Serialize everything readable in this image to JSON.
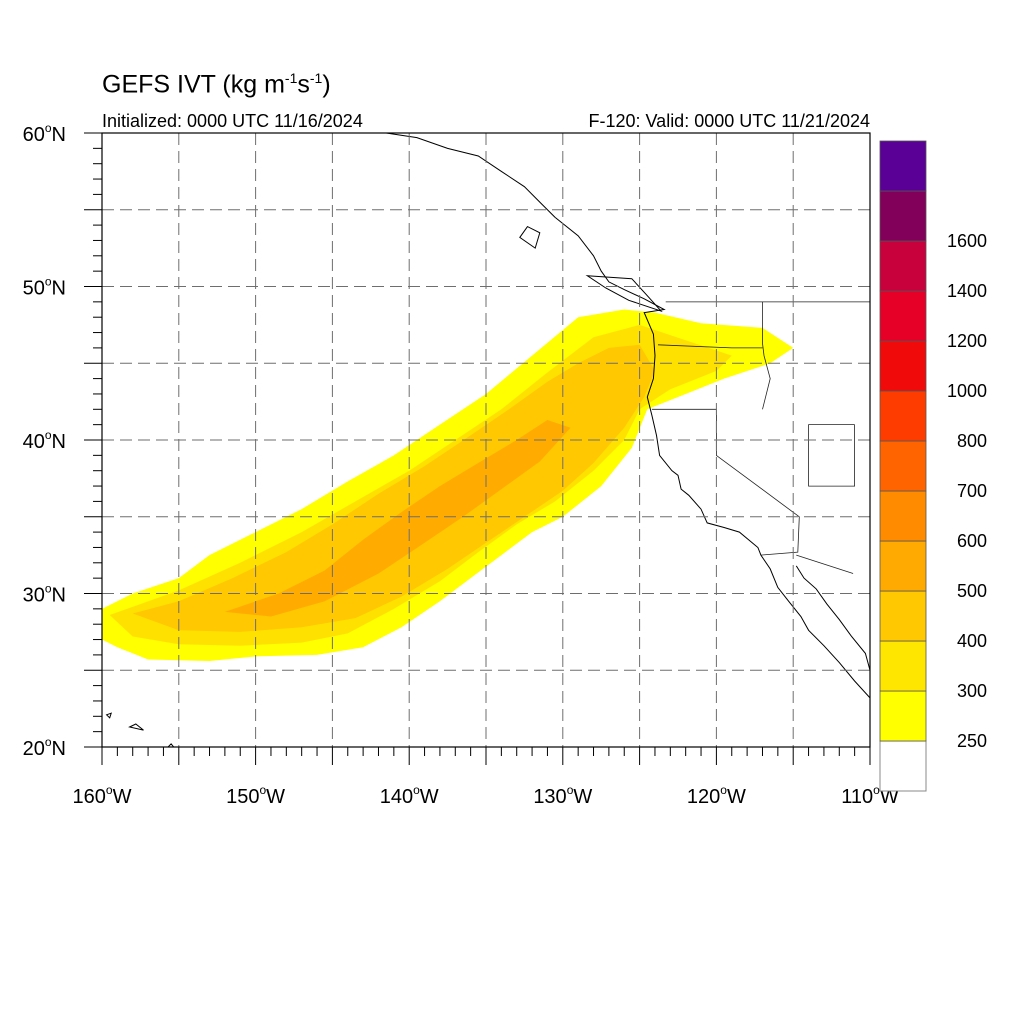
{
  "header": {
    "title_main": "GEFS IVT (kg m",
    "title_sup1": "-1",
    "title_mid": "s",
    "title_sup2": "-1",
    "title_end": ")",
    "init_text": "Initialized: 0000 UTC 11/16/2024",
    "valid_text": "F-120: Valid: 0000 UTC 11/21/2024"
  },
  "map": {
    "lon_range": [
      -160,
      -110
    ],
    "lat_range": [
      20,
      60
    ],
    "grid": "dashed 5-degree",
    "lat_labels": [
      {
        "lat": 60,
        "deg": "60",
        "hem": "N"
      },
      {
        "lat": 50,
        "deg": "50",
        "hem": "N"
      },
      {
        "lat": 40,
        "deg": "40",
        "hem": "N"
      },
      {
        "lat": 30,
        "deg": "30",
        "hem": "N"
      },
      {
        "lat": 20,
        "deg": "20",
        "hem": "N"
      }
    ],
    "lon_labels": [
      {
        "lon": -160,
        "deg": "160",
        "hem": "W"
      },
      {
        "lon": -150,
        "deg": "150",
        "hem": "W"
      },
      {
        "lon": -140,
        "deg": "140",
        "hem": "W"
      },
      {
        "lon": -130,
        "deg": "130",
        "hem": "W"
      },
      {
        "lon": -120,
        "deg": "120",
        "hem": "W"
      },
      {
        "lon": -110,
        "deg": "110",
        "hem": "W"
      }
    ]
  },
  "colorbar": {
    "levels": [
      {
        "value": 250,
        "label": "250",
        "color": "#ffff00"
      },
      {
        "value": 300,
        "label": "300",
        "color": "#ffe600"
      },
      {
        "value": 400,
        "label": "400",
        "color": "#ffc800"
      },
      {
        "value": 500,
        "label": "500",
        "color": "#ffaa00"
      },
      {
        "value": 600,
        "label": "600",
        "color": "#ff8c00"
      },
      {
        "value": 700,
        "label": "700",
        "color": "#ff6400"
      },
      {
        "value": 800,
        "label": "800",
        "color": "#ff3c00"
      },
      {
        "value": 1000,
        "label": "1000",
        "color": "#f00a0a"
      },
      {
        "value": 1200,
        "label": "1200",
        "color": "#e60028"
      },
      {
        "value": 1400,
        "label": "1400",
        "color": "#c8003c"
      },
      {
        "value": 1600,
        "label": "1600",
        "color": "#82005a"
      },
      {
        "value": null,
        "label": "",
        "color": "#5a0096"
      }
    ],
    "below_min_color": "#ffffff"
  },
  "ivt_plume": {
    "units": "kg m-1 s-1",
    "bands": [
      {
        "min_value": 250,
        "color": "#ffff00",
        "lonlat": [
          [
            -160,
            29
          ],
          [
            -158,
            30
          ],
          [
            -155,
            31
          ],
          [
            -153,
            32.5
          ],
          [
            -150,
            34
          ],
          [
            -147,
            35.5
          ],
          [
            -144,
            37.3
          ],
          [
            -141,
            39
          ],
          [
            -138,
            41
          ],
          [
            -135,
            43
          ],
          [
            -132,
            45.5
          ],
          [
            -129,
            48
          ],
          [
            -126,
            48.5
          ],
          [
            -124,
            48.3
          ],
          [
            -121,
            47.6
          ],
          [
            -117,
            47.3
          ],
          [
            -115,
            46
          ],
          [
            -116.5,
            45
          ],
          [
            -119.5,
            44
          ],
          [
            -122,
            43
          ],
          [
            -124.5,
            42
          ],
          [
            -125.5,
            39.5
          ],
          [
            -127.5,
            37
          ],
          [
            -130,
            35
          ],
          [
            -132,
            34
          ],
          [
            -134,
            32.5
          ],
          [
            -136,
            31
          ],
          [
            -138,
            29.5
          ],
          [
            -140.5,
            27.8
          ],
          [
            -143,
            26.5
          ],
          [
            -146,
            26
          ],
          [
            -150,
            25.9
          ],
          [
            -153,
            25.6
          ],
          [
            -157,
            25.7
          ],
          [
            -159,
            26.5
          ],
          [
            -160,
            27
          ]
        ]
      },
      {
        "min_value": 300,
        "color": "#ffe100",
        "lonlat": [
          [
            -159.5,
            28.6
          ],
          [
            -155,
            30.2
          ],
          [
            -151,
            32
          ],
          [
            -147,
            34
          ],
          [
            -143.5,
            36
          ],
          [
            -140,
            38
          ],
          [
            -137,
            40
          ],
          [
            -134,
            42
          ],
          [
            -131,
            44.4
          ],
          [
            -128,
            46.7
          ],
          [
            -125,
            47.5
          ],
          [
            -122,
            46.5
          ],
          [
            -119,
            45.5
          ],
          [
            -120,
            44.5
          ],
          [
            -123,
            43.3
          ],
          [
            -125,
            42
          ],
          [
            -126,
            40
          ],
          [
            -128,
            38
          ],
          [
            -130.5,
            36
          ],
          [
            -133,
            34.5
          ],
          [
            -135.5,
            32.7
          ],
          [
            -138,
            30.8
          ],
          [
            -141,
            29
          ],
          [
            -144,
            27.4
          ],
          [
            -147,
            26.8
          ],
          [
            -151,
            26.6
          ],
          [
            -155,
            26.7
          ],
          [
            -158,
            27.2
          ]
        ]
      },
      {
        "min_value": 400,
        "color": "#ffc800",
        "lonlat": [
          [
            -158,
            28.7
          ],
          [
            -155,
            29.5
          ],
          [
            -151.5,
            31
          ],
          [
            -148,
            32.7
          ],
          [
            -145,
            34.5
          ],
          [
            -142,
            36.5
          ],
          [
            -139,
            38.3
          ],
          [
            -136,
            40.3
          ],
          [
            -133.5,
            42
          ],
          [
            -131,
            43.8
          ],
          [
            -129,
            45
          ],
          [
            -127,
            46
          ],
          [
            -125,
            46.2
          ],
          [
            -124,
            44.5
          ],
          [
            -124.7,
            42.8
          ],
          [
            -126,
            40.8
          ],
          [
            -128,
            38.5
          ],
          [
            -130,
            36.7
          ],
          [
            -132.5,
            35
          ],
          [
            -135,
            33.3
          ],
          [
            -137.5,
            31.6
          ],
          [
            -140.5,
            29.8
          ],
          [
            -143.5,
            28.4
          ],
          [
            -147,
            27.8
          ],
          [
            -151,
            27.5
          ],
          [
            -155,
            27.6
          ]
        ]
      },
      {
        "min_value": 500,
        "color": "#ffab00",
        "lonlat": [
          [
            -152,
            28.8
          ],
          [
            -148.5,
            30
          ],
          [
            -145.5,
            31.5
          ],
          [
            -143,
            33.5
          ],
          [
            -140.5,
            35.3
          ],
          [
            -138,
            37
          ],
          [
            -135.5,
            38.5
          ],
          [
            -133,
            40
          ],
          [
            -131,
            41.3
          ],
          [
            -129.5,
            40.8
          ],
          [
            -131.5,
            38.6
          ],
          [
            -134,
            36.8
          ],
          [
            -136.5,
            35
          ],
          [
            -139,
            33.3
          ],
          [
            -142,
            31.3
          ],
          [
            -145.5,
            29.5
          ],
          [
            -149,
            28.5
          ]
        ]
      }
    ]
  },
  "geography": {
    "coastline": [
      [
        [
          -130.5,
          54.5
        ],
        [
          -131.5,
          55.5
        ],
        [
          -132.5,
          56.5
        ],
        [
          -134,
          57.5
        ],
        [
          -135.5,
          58.5
        ],
        [
          -137.5,
          59
        ],
        [
          -139.5,
          59.7
        ],
        [
          -141.5,
          60
        ]
      ],
      [
        [
          -130.5,
          54.5
        ],
        [
          -129,
          53.3
        ],
        [
          -128,
          52
        ],
        [
          -127.5,
          51
        ],
        [
          -127,
          50.3
        ],
        [
          -126,
          49.8
        ],
        [
          -124.7,
          49.2
        ],
        [
          -123.4,
          48.5
        ],
        [
          -124.7,
          48.3
        ],
        [
          -124.1,
          46.9
        ],
        [
          -124,
          45.5
        ],
        [
          -124.1,
          44
        ],
        [
          -124.5,
          42.8
        ],
        [
          -124.2,
          41.6
        ],
        [
          -123.9,
          40.3
        ],
        [
          -123.7,
          39
        ],
        [
          -122.9,
          38
        ],
        [
          -122.5,
          37.7
        ],
        [
          -122.3,
          36.8
        ],
        [
          -121.8,
          36.4
        ],
        [
          -121,
          35.5
        ],
        [
          -120.6,
          34.6
        ],
        [
          -119.5,
          34.3
        ],
        [
          -118.5,
          34
        ],
        [
          -117.3,
          33
        ],
        [
          -117.1,
          32.5
        ],
        [
          -116.5,
          31.6
        ],
        [
          -116,
          30.4
        ],
        [
          -115.3,
          29.5
        ],
        [
          -114.5,
          28.5
        ],
        [
          -114,
          27.6
        ],
        [
          -113,
          26.6
        ],
        [
          -112,
          25.5
        ],
        [
          -111,
          24.3
        ],
        [
          -110,
          23.2
        ]
      ],
      [
        [
          -114.8,
          31.8
        ],
        [
          -114.3,
          31
        ],
        [
          -113.5,
          30.3
        ],
        [
          -112.8,
          29.3
        ],
        [
          -112,
          28.3
        ],
        [
          -111.2,
          27.2
        ],
        [
          -110.3,
          26.1
        ],
        [
          -110,
          25
        ]
      ]
    ],
    "island_groups": [
      [
        [
          -155.9,
          19.8
        ],
        [
          -155.5,
          19.5
        ],
        [
          -155,
          19.6
        ],
        [
          -155.5,
          20.2
        ]
      ],
      [
        [
          -157.3,
          21.1
        ],
        [
          -157.8,
          21.5
        ],
        [
          -158.2,
          21.3
        ]
      ],
      [
        [
          -159.4,
          22.2
        ],
        [
          -159.7,
          22.1
        ],
        [
          -159.5,
          21.9
        ]
      ],
      [
        [
          -132.3,
          53.9
        ],
        [
          -132.8,
          53.2
        ],
        [
          -131.8,
          52.5
        ],
        [
          -131.5,
          53.5
        ]
      ],
      [
        [
          -125.5,
          50.5
        ],
        [
          -128.4,
          50.7
        ],
        [
          -127.2,
          49.9
        ],
        [
          -125.7,
          49.1
        ],
        [
          -123.6,
          48.4
        ],
        [
          -124.5,
          49.4
        ]
      ]
    ],
    "borders": [
      [
        [
          -123.3,
          49
        ],
        [
          -110,
          49
        ]
      ],
      [
        [
          -124.2,
          42
        ],
        [
          -120,
          42
        ],
        [
          -120,
          39
        ],
        [
          -114.6,
          35
        ],
        [
          -114.7,
          32.7
        ],
        [
          -117.1,
          32.5
        ]
      ],
      [
        [
          -117,
          49
        ],
        [
          -117,
          46.3
        ],
        [
          -116.9,
          45.5
        ],
        [
          -116.5,
          44
        ],
        [
          -117,
          42
        ]
      ],
      [
        [
          -111,
          41
        ],
        [
          -114,
          41
        ],
        [
          -114,
          37
        ],
        [
          -111,
          37
        ],
        [
          -111,
          41
        ]
      ],
      [
        [
          -111.1,
          31.3
        ],
        [
          -114.8,
          32.5
        ]
      ],
      [
        [
          -123.8,
          46.2
        ],
        [
          -119,
          46
        ],
        [
          -117,
          46
        ]
      ]
    ]
  }
}
